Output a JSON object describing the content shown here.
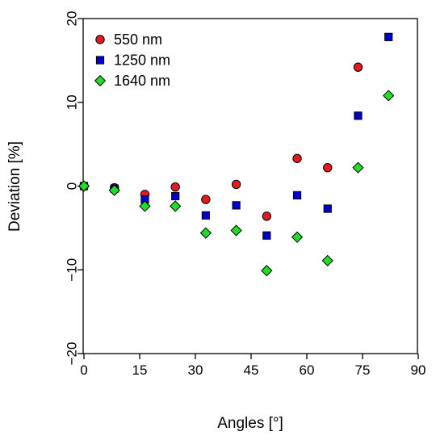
{
  "chart_data": {
    "type": "scatter",
    "title": "",
    "xlabel": "Angles [°]",
    "ylabel": "Deviation [%]",
    "xlim": [
      0,
      90
    ],
    "ylim": [
      -20,
      20
    ],
    "xticks": [
      "0",
      "15",
      "30",
      "45",
      "60",
      "75",
      "90"
    ],
    "yticks": [
      "−20",
      "−10",
      "0",
      "10",
      "20"
    ],
    "grid": false,
    "legend_position": "top-left",
    "series": [
      {
        "name": "550 nm",
        "marker": "circle",
        "color": "#e41a1c",
        "x": [
          0,
          8.2,
          16.4,
          24.6,
          32.8,
          41,
          49.2,
          57.4,
          65.6,
          73.8
        ],
        "y": [
          0,
          -0.2,
          -1.0,
          -0.1,
          -1.6,
          0.2,
          -3.6,
          3.3,
          2.2,
          14.2
        ]
      },
      {
        "name": "1250 nm",
        "marker": "square",
        "color": "#0000cd",
        "x": [
          0,
          8.2,
          16.4,
          24.6,
          32.8,
          41,
          49.2,
          57.4,
          65.6,
          73.8,
          82
        ],
        "y": [
          0,
          -0.3,
          -1.6,
          -1.2,
          -3.5,
          -2.3,
          -5.9,
          -1.1,
          -2.7,
          8.4,
          17.8
        ]
      },
      {
        "name": "1640 nm",
        "marker": "diamond",
        "color": "#22dd22",
        "x": [
          0,
          8.2,
          16.4,
          24.6,
          32.8,
          41,
          49.2,
          57.4,
          65.6,
          73.8,
          82
        ],
        "y": [
          0,
          -0.5,
          -2.4,
          -2.4,
          -5.6,
          -5.3,
          -10.1,
          -6.1,
          -8.9,
          2.2,
          10.8
        ]
      }
    ]
  }
}
